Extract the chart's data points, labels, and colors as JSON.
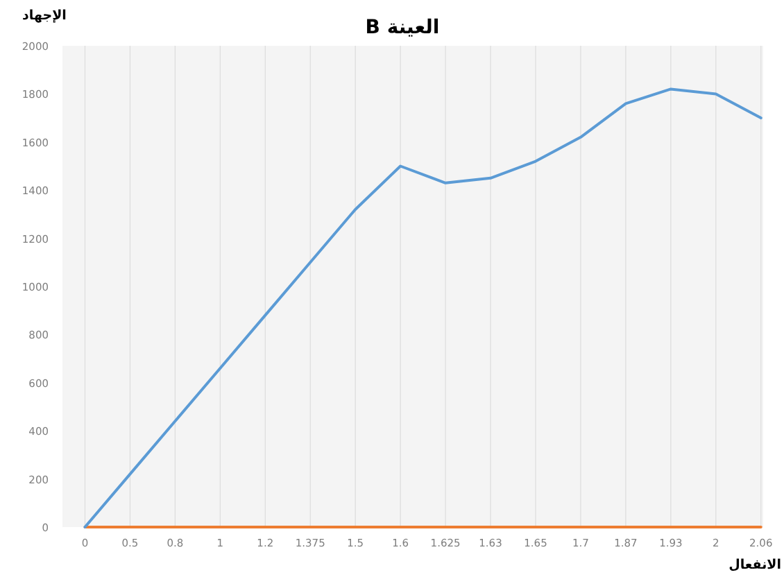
{
  "chart_data": {
    "type": "line",
    "title": "العينة B",
    "ylabel": "الإجهاد",
    "xlabel": "الانفعال",
    "categories": [
      "0",
      "0.5",
      "0.8",
      "1",
      "1.2",
      "1.375",
      "1.5",
      "1.6",
      "1.625",
      "1.63",
      "1.65",
      "1.7",
      "1.87",
      "1.93",
      "2",
      "2.06"
    ],
    "series": [
      {
        "color": "#5b9bd5",
        "values": [
          0,
          220,
          440,
          660,
          880,
          1100,
          1320,
          1500,
          1430,
          1450,
          1520,
          1620,
          1760,
          1820,
          1800,
          1700
        ]
      },
      {
        "color": "#ed7d31",
        "values": [
          0,
          0,
          0,
          0,
          0,
          0,
          0,
          0,
          0,
          0,
          0,
          0,
          0,
          0,
          0,
          0
        ]
      }
    ],
    "ylim": [
      0,
      2000
    ],
    "yticks": [
      0,
      200,
      400,
      600,
      800,
      1000,
      1200,
      1400,
      1600,
      1800,
      2000
    ],
    "grid": "x",
    "marker": "none",
    "line_style": "solid"
  }
}
